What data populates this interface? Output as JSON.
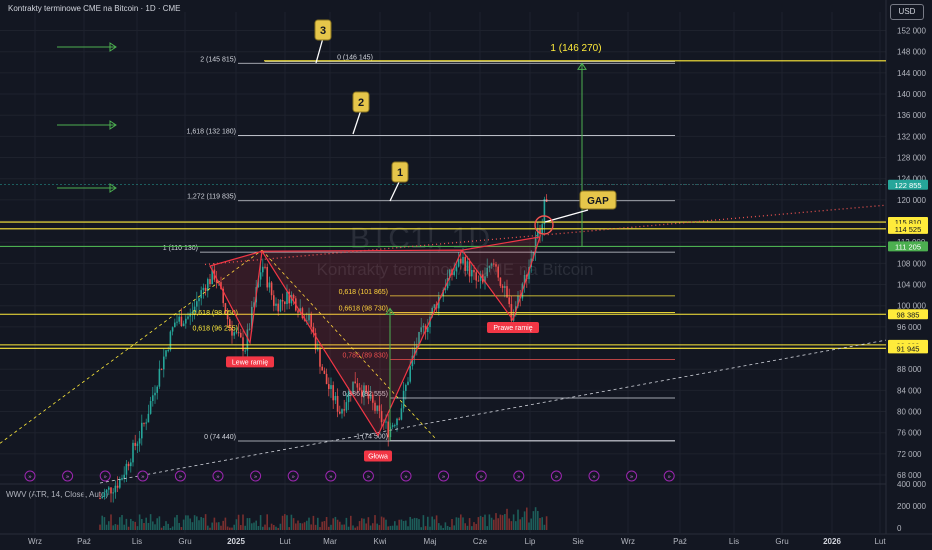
{
  "header": {
    "title": "Kontrakty terminowe CME na Bitcoin · 1D · CME",
    "currency": "USD"
  },
  "indicator": {
    "label": "WWV (ATR, 14, Close, Auto)"
  },
  "watermark": {
    "symbol": "BTC1!, 1D",
    "name": "Kontrakty terminowe CME na Bitcoin"
  },
  "colors": {
    "bg": "#131722",
    "grid": "#1e222d",
    "up": "#26a69a",
    "down": "#ef5350",
    "pattern": "#f23645",
    "fib": "#ffeb3b",
    "white": "#d1d4dc",
    "target": "#4caf50"
  },
  "chart_data": {
    "type": "candlestick",
    "y_axis": {
      "ticks": [
        68000,
        72000,
        76000,
        80000,
        84000,
        88000,
        92000,
        96000,
        100000,
        104000,
        108000,
        112000,
        116000,
        120000,
        124000,
        128000,
        132000,
        136000,
        140000,
        144000,
        148000,
        152000
      ],
      "tick_labels": [
        "68 000",
        "72 000",
        "76 000",
        "80 000",
        "84 000",
        "88 000",
        "92 000",
        "96 000",
        "100 000",
        "104 000",
        "108 000",
        "112 000",
        "116 000",
        "120 000",
        "124 000",
        "128 000",
        "132 000",
        "136 000",
        "140 000",
        "144 000",
        "148 000",
        "152 000"
      ],
      "range": [
        66500,
        155500
      ]
    },
    "x_axis": {
      "labels": [
        "Wrz",
        "Paź",
        "Lis",
        "Gru",
        "2025",
        "Lut",
        "Mar",
        "Kwi",
        "Maj",
        "Cze",
        "Lip",
        "Sie",
        "Wrz",
        "Paź",
        "Lis",
        "Gru",
        "2026",
        "Lut"
      ]
    },
    "volume_axis": {
      "ticks": [
        0,
        200000,
        400000
      ],
      "tick_labels": [
        "0",
        "200 000",
        "400 000"
      ]
    },
    "price_tags": [
      {
        "value": 122855,
        "label": "122 855",
        "color": "#26a69a"
      },
      {
        "value": 115810,
        "label": "115 810",
        "color": "#ffeb3b"
      },
      {
        "value": 114525,
        "label": "114 525",
        "color": "#ffeb3b"
      },
      {
        "value": 111205,
        "label": "111 205",
        "color": "#4caf50"
      },
      {
        "value": 98385,
        "label": "98 385",
        "color": "#ffeb3b"
      },
      {
        "value": 92600,
        "label": "92 600",
        "color": "#ffeb3b"
      },
      {
        "value": 91945,
        "label": "91 945",
        "color": "#ffeb3b"
      }
    ],
    "fib_extension": [
      {
        "label": "2 (145 815)",
        "value": 145815
      },
      {
        "label": "1,618 (132 180)",
        "value": 132180
      },
      {
        "label": "1,272 (119 835)",
        "value": 119835
      },
      {
        "label": "1 (110 130)",
        "value": 110130
      },
      {
        "label": "0 (74 440)",
        "value": 74440
      }
    ],
    "fib_retracement": [
      {
        "label": "0 (146 145)",
        "value": 146145
      },
      {
        "label": "0,618 (101 865)",
        "value": 101865
      },
      {
        "label": "0,6618 (98 730)",
        "value": 98730
      },
      {
        "label": "0,786 (89 830)",
        "value": 89830
      },
      {
        "label": "0,886 (82 555)",
        "value": 82555
      },
      {
        "label": "1 (74 500)",
        "value": 74500
      }
    ],
    "left_fib_labels": [
      "0,618 (98 050)",
      "0,618 (96 255)"
    ],
    "target": {
      "label": "1 (146 270)",
      "value": 146270
    },
    "wave_labels": [
      "1",
      "2",
      "3"
    ],
    "gap_label": "GAP",
    "pattern_labels": {
      "left": "Lewe ramię",
      "head": "Głowa",
      "right": "Prawe ramię"
    }
  }
}
